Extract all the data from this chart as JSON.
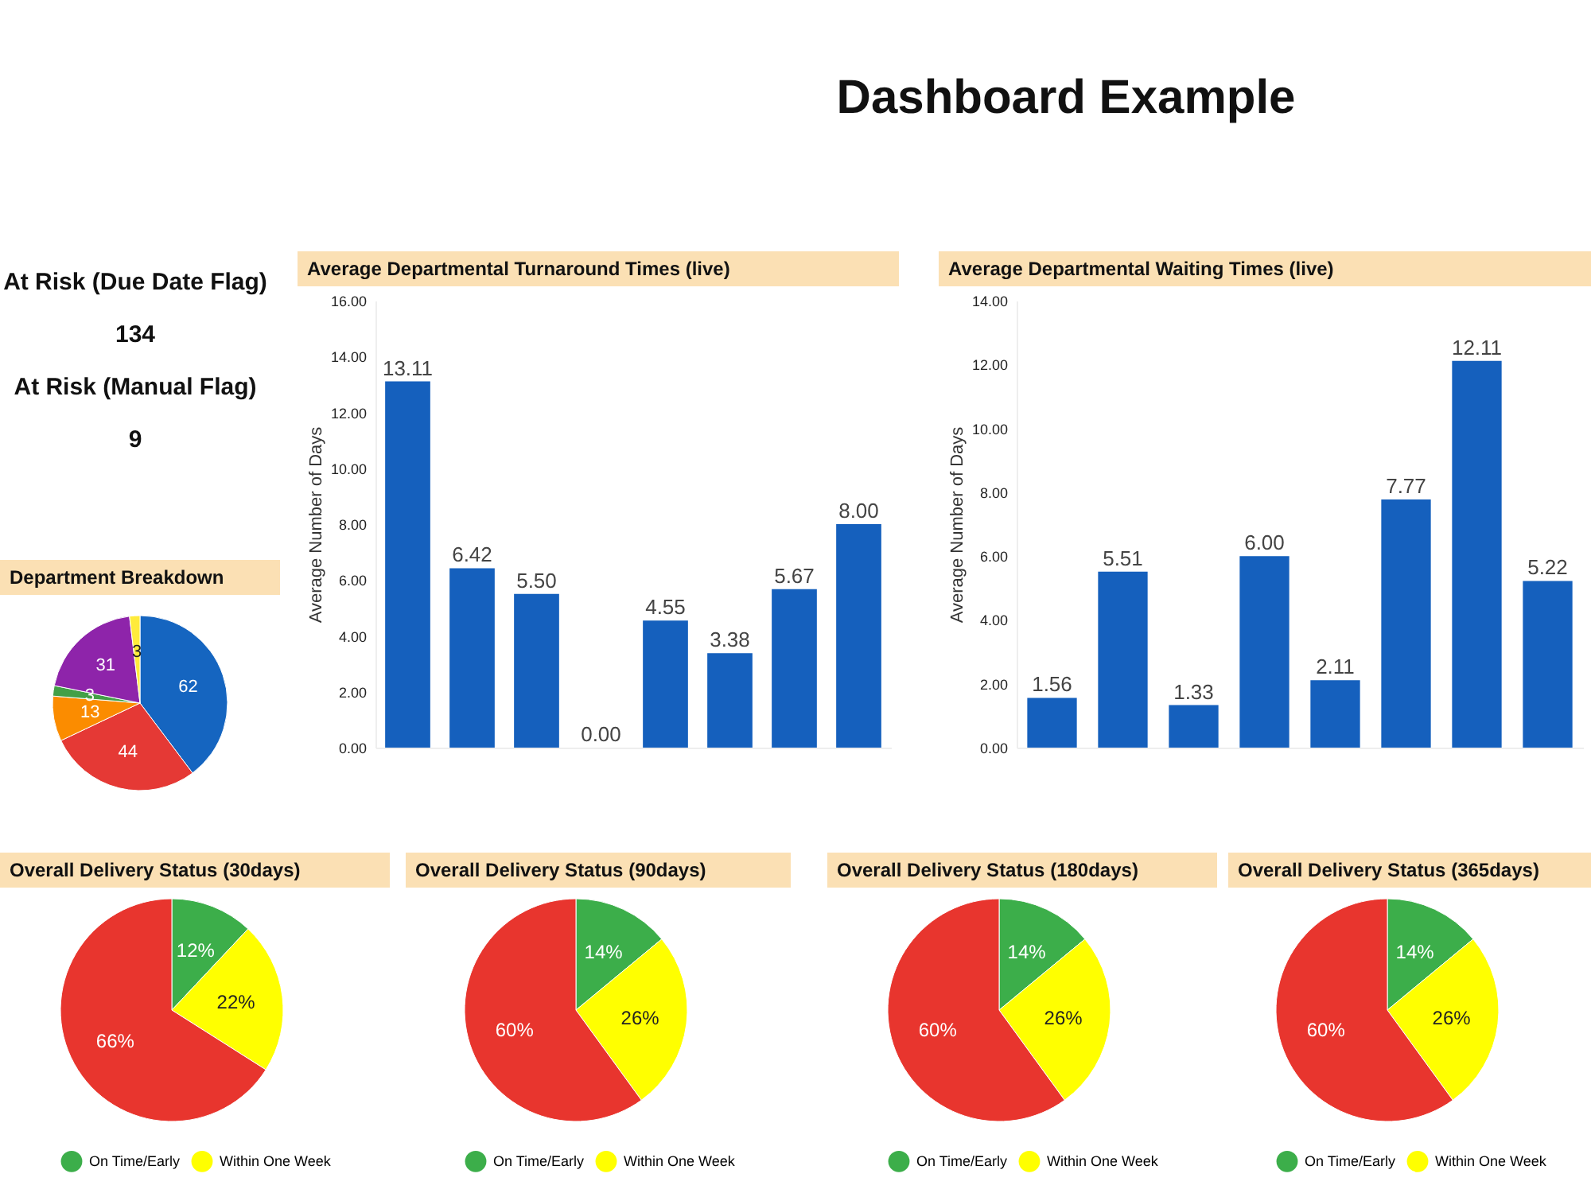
{
  "chart_data": [
    {
      "type": "other",
      "title": "Dashboard Example"
    },
    {
      "type": "other",
      "annotations": [
        "At Risk (Due Date Flag)",
        "134",
        "At Risk (Manual Flag)",
        "9"
      ]
    },
    {
      "type": "pie",
      "title": "Department Breakdown",
      "categories": [
        null,
        null,
        null,
        null,
        null,
        null
      ],
      "values": [
        62,
        44,
        13,
        3,
        31,
        3
      ],
      "colors": [
        "#1565c0",
        "#e53935",
        "#fb8c00",
        "#43a047",
        "#8e24aa",
        "#ffeb3b"
      ],
      "data_labels": true
    },
    {
      "type": "bar",
      "title": "Average Departmental Turnaround Times (live)",
      "ylabel": "Average Number of Days",
      "categories": [
        null,
        null,
        null,
        null,
        null,
        null,
        null,
        null
      ],
      "values": [
        13.11,
        6.42,
        5.5,
        0,
        4.55,
        3.38,
        5.67,
        8
      ],
      "value_labels": [
        "13.11",
        "6.42",
        "5.50",
        "0.00",
        "4.55",
        "3.38",
        "5.67",
        "8.00"
      ],
      "color": "#1560bd",
      "ylim": [
        0,
        16
      ],
      "yticks": [
        {
          "value": 0,
          "label": "0.00"
        },
        {
          "value": 2,
          "label": "2.00"
        },
        {
          "value": 4,
          "label": "4.00"
        },
        {
          "value": 6,
          "label": "6.00"
        },
        {
          "value": 8,
          "label": "8.00"
        },
        {
          "value": 10,
          "label": "10.00"
        },
        {
          "value": 12,
          "label": "12.00"
        },
        {
          "value": 14,
          "label": "14.00"
        },
        {
          "value": 16,
          "label": "16.00"
        }
      ]
    },
    {
      "type": "bar",
      "title": "Average Departmental Waiting Times (live)",
      "ylabel": "Average Number of Days",
      "categories": [
        null,
        null,
        null,
        null,
        null,
        null,
        null,
        null
      ],
      "values": [
        1.56,
        5.51,
        1.33,
        6,
        2.11,
        7.77,
        12.11,
        5.22
      ],
      "value_labels": [
        "1.56",
        "5.51",
        "1.33",
        "6.00",
        "2.11",
        "7.77",
        "12.11",
        "5.22"
      ],
      "color": "#1560bd",
      "ylim": [
        0,
        14
      ],
      "yticks": [
        {
          "value": 0,
          "label": "0.00"
        },
        {
          "value": 2,
          "label": "2.00"
        },
        {
          "value": 4,
          "label": "4.00"
        },
        {
          "value": 6,
          "label": "6.00"
        },
        {
          "value": 8,
          "label": "8.00"
        },
        {
          "value": 10,
          "label": "10.00"
        },
        {
          "value": 12,
          "label": "12.00"
        },
        {
          "value": 14,
          "label": "14.00"
        }
      ]
    },
    {
      "type": "pie",
      "title": "Overall Delivery Status (30days)",
      "categories": [
        "On Time/Early",
        "Within One Week",
        null
      ],
      "values": [
        12,
        22,
        66
      ],
      "value_labels": [
        "12%",
        "22%",
        "66%"
      ],
      "colors": [
        "#3cae4a",
        "#ffff00",
        "#e8352e"
      ],
      "legend": "bottom"
    },
    {
      "type": "pie",
      "title": "Overall Delivery Status (90days)",
      "categories": [
        "On Time/Early",
        "Within One Week",
        null
      ],
      "values": [
        14,
        26,
        60
      ],
      "value_labels": [
        "14%",
        "26%",
        "60%"
      ],
      "colors": [
        "#3cae4a",
        "#ffff00",
        "#e8352e"
      ],
      "legend": "bottom"
    },
    {
      "type": "pie",
      "title": "Overall Delivery Status (180days)",
      "categories": [
        "On Time/Early",
        "Within One Week",
        null
      ],
      "values": [
        14,
        26,
        60
      ],
      "value_labels": [
        "14%",
        "26%",
        "60%"
      ],
      "colors": [
        "#3cae4a",
        "#ffff00",
        "#e8352e"
      ],
      "legend": "bottom"
    },
    {
      "type": "pie",
      "title": "Overall Delivery Status (365days)",
      "categories": [
        "On Time/Early",
        "Within One Week",
        null
      ],
      "values": [
        14,
        26,
        60
      ],
      "value_labels": [
        "14%",
        "26%",
        "60%"
      ],
      "colors": [
        "#3cae4a",
        "#ffff00",
        "#e8352e"
      ],
      "legend": "bottom"
    }
  ]
}
